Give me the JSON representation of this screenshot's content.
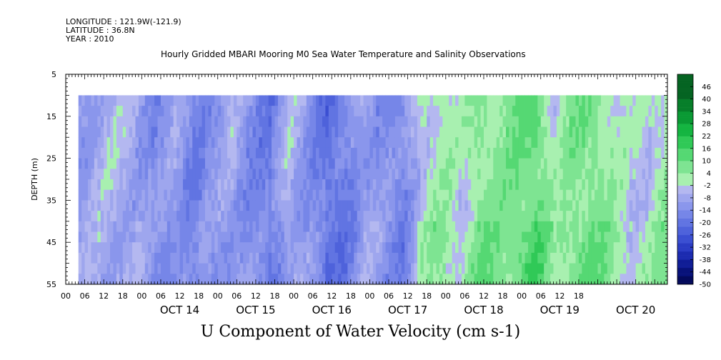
{
  "header": {
    "longitude": "LONGITUDE : 121.9W(-121.9)",
    "latitude": "LATITUDE : 36.8N",
    "year": "YEAR : 2010"
  },
  "chart_data": {
    "type": "heatmap",
    "title": "Hourly Gridded MBARI Mooring M0 Sea Water Temperature and Salinity Observations",
    "xlabel": "U Component of Water Velocity (cm s-1)",
    "ylabel": "DEPTH (m)",
    "ylim": [
      55,
      5
    ],
    "yticks": [
      5,
      15,
      25,
      35,
      45,
      55
    ],
    "x_start": "2010-10-13 00:00",
    "x_end": "2010-10-20 22:00",
    "xlim_hours": [
      0,
      190
    ],
    "data_start_hour": 4,
    "data_end_hour": 190,
    "depth_range": [
      10,
      55
    ],
    "x_hour_labels": [
      "00",
      "06",
      "12",
      "18",
      "00",
      "06",
      "12",
      "18",
      "00",
      "06",
      "12",
      "18",
      "00",
      "06",
      "12",
      "18",
      "00",
      "06",
      "12",
      "18",
      "00",
      "06",
      "12",
      "18",
      "00",
      "06",
      "12",
      "18"
    ],
    "x_day_labels": [
      {
        "label": "OCT 14",
        "hour": 36
      },
      {
        "label": "OCT 15",
        "hour": 60
      },
      {
        "label": "OCT 16",
        "hour": 84
      },
      {
        "label": "OCT 17",
        "hour": 108
      },
      {
        "label": "OCT 18",
        "hour": 132
      },
      {
        "label": "OCT 19",
        "hour": 156
      },
      {
        "label": "OCT 20",
        "hour": 180
      }
    ],
    "colorbar_labels": [
      "46",
      "40",
      "34",
      "28",
      "22",
      "16",
      "10",
      "4",
      "-2",
      "-8",
      "-14",
      "-20",
      "-26",
      "-32",
      "-38",
      "-44",
      "-50"
    ],
    "colorbar_range": [
      -50,
      52
    ],
    "colors": {
      "positive": [
        "#a8f0b0",
        "#7ee492",
        "#55d873",
        "#30c957",
        "#14b541",
        "#0a9a34",
        "#077f2a",
        "#056422"
      ],
      "negative": [
        "#b4b8f0",
        "#9ea6ee",
        "#8a96ec",
        "#7686e8",
        "#6174e2",
        "#4e62db",
        "#3b4fd2",
        "#2b3cc4",
        "#1c2bb0",
        "#101d96",
        "#08127a",
        "#040a5c"
      ]
    },
    "time_profile": [
      {
        "hour": 4,
        "u": -10
      },
      {
        "hour": 10,
        "u": -7
      },
      {
        "hour": 16,
        "u": -6
      },
      {
        "hour": 22,
        "u": -8
      },
      {
        "hour": 28,
        "u": -14
      },
      {
        "hour": 34,
        "u": -10
      },
      {
        "hour": 40,
        "u": -16
      },
      {
        "hour": 46,
        "u": -12
      },
      {
        "hour": 52,
        "u": -8
      },
      {
        "hour": 58,
        "u": -14
      },
      {
        "hour": 64,
        "u": -18
      },
      {
        "hour": 70,
        "u": -6
      },
      {
        "hour": 76,
        "u": -12
      },
      {
        "hour": 82,
        "u": -20
      },
      {
        "hour": 88,
        "u": -18
      },
      {
        "hour": 94,
        "u": -9
      },
      {
        "hour": 100,
        "u": -13
      },
      {
        "hour": 106,
        "u": -16
      },
      {
        "hour": 112,
        "u": -2
      },
      {
        "hour": 118,
        "u": 2
      },
      {
        "hour": 124,
        "u": -3
      },
      {
        "hour": 130,
        "u": 6
      },
      {
        "hour": 136,
        "u": 4
      },
      {
        "hour": 142,
        "u": 8
      },
      {
        "hour": 148,
        "u": 12
      },
      {
        "hour": 154,
        "u": -1
      },
      {
        "hour": 160,
        "u": 6
      },
      {
        "hour": 166,
        "u": 8
      },
      {
        "hour": 172,
        "u": 2
      },
      {
        "hour": 178,
        "u": -4
      },
      {
        "hour": 184,
        "u": -2
      },
      {
        "hour": 190,
        "u": 4
      }
    ]
  }
}
